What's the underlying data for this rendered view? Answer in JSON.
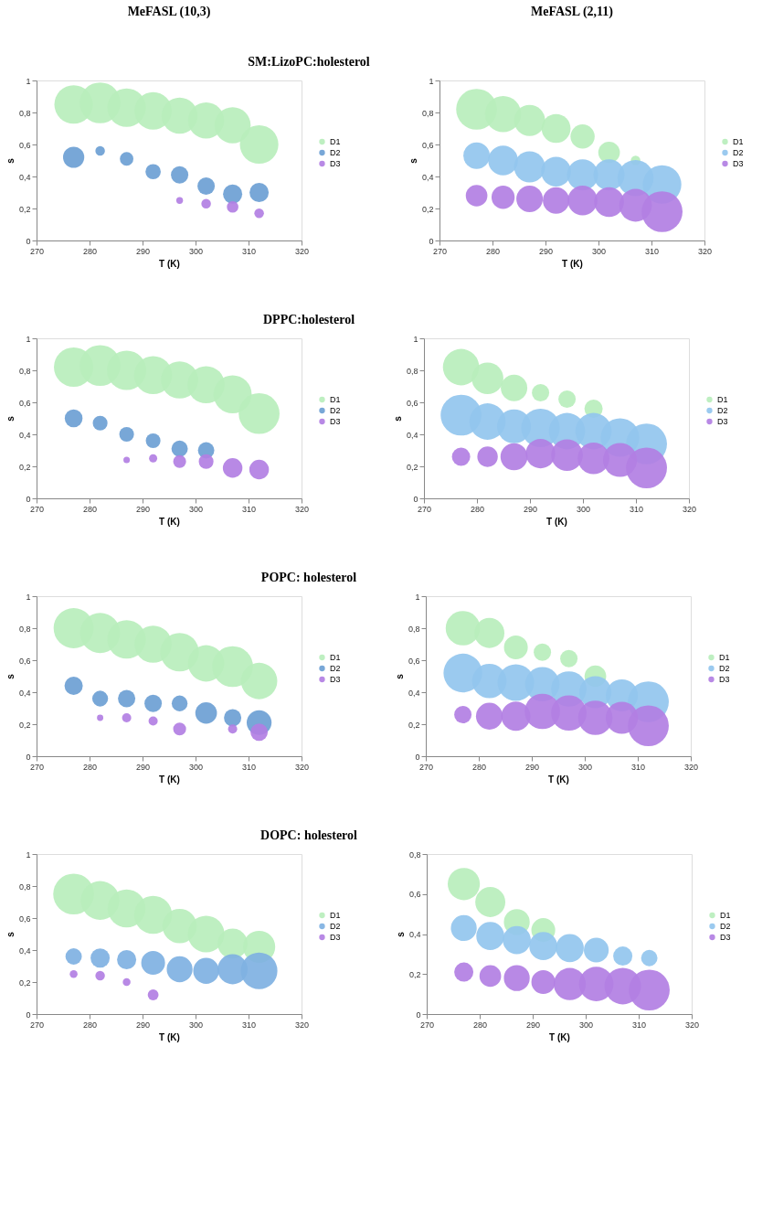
{
  "chart_data": [
    {
      "type": "bubble",
      "title": "MeFASL (10,3)",
      "subtitle": "SM:LizoPC:holesterol",
      "xlabel": "T (K)",
      "ylabel": "s",
      "x": [
        277,
        282,
        287,
        292,
        297,
        302,
        307,
        312
      ],
      "xlim": [
        270,
        320
      ],
      "xticks": [
        270,
        280,
        290,
        300,
        310,
        320
      ],
      "ylim": [
        0,
        1
      ],
      "yticks": [
        0,
        {
          "value": 0.2,
          "label": "0,2"
        },
        {
          "value": 0.4,
          "label": "0,4"
        },
        {
          "value": 0.6,
          "label": "0,6"
        },
        {
          "value": 0.8,
          "label": "0,8"
        },
        1
      ],
      "legend": "right",
      "series": [
        {
          "name": "D1",
          "color": "#b8eebc",
          "values": [
            0.85,
            0.86,
            0.83,
            0.81,
            0.78,
            0.75,
            0.72,
            0.6
          ],
          "sizes": [
            0.89,
            1,
            0.89,
            0.84,
            0.78,
            0.78,
            0.78,
            0.89
          ]
        },
        {
          "name": "D2",
          "color": "#6c9fd4",
          "values": [
            0.52,
            0.56,
            0.51,
            0.43,
            0.41,
            0.34,
            0.29,
            0.3
          ],
          "sizes": [
            0.27,
            0.055,
            0.11,
            0.14,
            0.18,
            0.18,
            0.22,
            0.22
          ]
        },
        {
          "name": "D3",
          "color": "#b27fe3",
          "values": [
            null,
            null,
            null,
            null,
            0.25,
            0.23,
            0.21,
            0.17
          ],
          "sizes": [
            null,
            null,
            null,
            null,
            0.027,
            0.055,
            0.08,
            0.055
          ]
        }
      ]
    },
    {
      "type": "bubble",
      "xlabel": "T (K)",
      "ylabel": "s",
      "x": [
        277,
        282,
        287,
        292,
        297,
        302,
        307,
        312
      ],
      "xlim": [
        270,
        320
      ],
      "xticks": [
        270,
        280,
        290,
        300,
        310,
        320
      ],
      "ylim": [
        0,
        1
      ],
      "yticks": [
        0,
        {
          "value": 0.2,
          "label": "0,2"
        },
        {
          "value": 0.4,
          "label": "0,4"
        },
        {
          "value": 0.6,
          "label": "0,6"
        },
        {
          "value": 0.8,
          "label": "0,8"
        },
        1
      ],
      "legend": "right",
      "title": "MeFASL (2,11)",
      "series": [
        {
          "name": "D1",
          "color": "#b8eebc",
          "values": [
            0.82,
            0.79,
            0.75,
            0.7,
            0.65,
            0.55,
            0.5,
            null
          ],
          "sizes": [
            1,
            0.78,
            0.58,
            0.5,
            0.35,
            0.28,
            0.055,
            null
          ]
        },
        {
          "name": "D2",
          "color": "#93c6ee",
          "values": [
            0.53,
            0.5,
            0.46,
            0.43,
            0.41,
            0.41,
            0.39,
            0.35
          ],
          "sizes": [
            0.42,
            0.53,
            0.58,
            0.53,
            0.58,
            0.58,
            0.78,
            0.89
          ]
        },
        {
          "name": "D3",
          "color": "#b27fe3",
          "values": [
            0.28,
            0.27,
            0.26,
            0.25,
            0.25,
            0.24,
            0.22,
            0.18
          ],
          "sizes": [
            0.28,
            0.32,
            0.42,
            0.42,
            0.53,
            0.53,
            0.64,
            1
          ]
        }
      ]
    },
    {
      "type": "bubble",
      "subtitle": "DPPC:holesterol",
      "xlabel": "T (K)",
      "ylabel": "s",
      "x": [
        277,
        282,
        287,
        292,
        297,
        302,
        307,
        312
      ],
      "xlim": [
        270,
        320
      ],
      "xticks": [
        270,
        280,
        290,
        300,
        310,
        320
      ],
      "ylim": [
        0,
        1
      ],
      "yticks": [
        0,
        {
          "value": 0.2,
          "label": "0,2"
        },
        {
          "value": 0.4,
          "label": "0,4"
        },
        {
          "value": 0.6,
          "label": "0,6"
        },
        {
          "value": 0.8,
          "label": "0,8"
        },
        1
      ],
      "legend": "right",
      "series": [
        {
          "name": "D1",
          "color": "#b8eebc",
          "values": [
            0.82,
            0.83,
            0.8,
            0.77,
            0.74,
            0.71,
            0.65,
            0.53
          ],
          "sizes": [
            0.93,
            1,
            0.93,
            0.87,
            0.83,
            0.83,
            0.87,
            1
          ]
        },
        {
          "name": "D2",
          "color": "#6c9fd4",
          "values": [
            0.5,
            0.47,
            0.4,
            0.36,
            0.31,
            0.3,
            null,
            null
          ],
          "sizes": [
            0.19,
            0.13,
            0.13,
            0.13,
            0.16,
            0.16,
            null,
            null
          ]
        },
        {
          "name": "D3",
          "color": "#b27fe3",
          "values": [
            null,
            null,
            0.24,
            0.25,
            0.23,
            0.23,
            0.19,
            0.18
          ],
          "sizes": [
            null,
            null,
            0.025,
            0.04,
            0.1,
            0.13,
            0.23,
            0.23
          ]
        }
      ]
    },
    {
      "type": "bubble",
      "xlabel": "T (K)",
      "ylabel": "s",
      "x": [
        277,
        282,
        287,
        292,
        297,
        302,
        307,
        312
      ],
      "xlim": [
        270,
        320
      ],
      "xticks": [
        270,
        280,
        290,
        300,
        310,
        320
      ],
      "ylim": [
        0,
        1
      ],
      "yticks": [
        0,
        {
          "value": 0.2,
          "label": "0,2"
        },
        {
          "value": 0.4,
          "label": "0,4"
        },
        {
          "value": 0.6,
          "label": "0,6"
        },
        {
          "value": 0.8,
          "label": "0,8"
        },
        1
      ],
      "legend": "right",
      "series": [
        {
          "name": "D1",
          "color": "#b8eebc",
          "values": [
            0.82,
            0.75,
            0.69,
            0.66,
            0.62,
            0.56,
            null,
            null
          ],
          "sizes": [
            0.79,
            0.6,
            0.42,
            0.18,
            0.18,
            0.2,
            null,
            null
          ]
        },
        {
          "name": "D2",
          "color": "#93c6ee",
          "values": [
            0.52,
            0.48,
            0.45,
            0.44,
            0.42,
            0.42,
            0.38,
            0.34
          ],
          "sizes": [
            1,
            0.79,
            0.69,
            0.89,
            0.79,
            0.79,
            0.89,
            1
          ]
        },
        {
          "name": "D3",
          "color": "#b27fe3",
          "values": [
            0.26,
            0.26,
            0.26,
            0.28,
            0.27,
            0.25,
            0.24,
            0.19
          ],
          "sizes": [
            0.2,
            0.25,
            0.44,
            0.52,
            0.6,
            0.6,
            0.69,
            1
          ]
        }
      ]
    },
    {
      "type": "bubble",
      "subtitle": "POPC: holesterol",
      "xlabel": "T (K)",
      "ylabel": "s",
      "x": [
        277,
        282,
        287,
        292,
        297,
        302,
        307,
        312
      ],
      "xlim": [
        270,
        320
      ],
      "xticks": [
        270,
        280,
        290,
        300,
        310,
        320
      ],
      "ylim": [
        0,
        1
      ],
      "yticks": [
        0,
        {
          "value": 0.2,
          "label": "0,2"
        },
        {
          "value": 0.4,
          "label": "0,4"
        },
        {
          "value": 0.6,
          "label": "0,6"
        },
        {
          "value": 0.8,
          "label": "0,8"
        },
        1
      ],
      "legend": "right",
      "series": [
        {
          "name": "D1",
          "color": "#b8eebc",
          "values": [
            0.8,
            0.77,
            0.73,
            0.7,
            0.65,
            0.58,
            0.56,
            0.47
          ],
          "sizes": [
            0.96,
            0.96,
            0.89,
            0.83,
            0.89,
            0.79,
            1,
            0.79
          ]
        },
        {
          "name": "D2",
          "color": "#6c9fd4",
          "values": [
            0.44,
            0.36,
            0.36,
            0.33,
            0.33,
            0.27,
            0.24,
            0.21
          ],
          "sizes": [
            0.2,
            0.15,
            0.18,
            0.18,
            0.15,
            0.28,
            0.18,
            0.37
          ]
        },
        {
          "name": "D3",
          "color": "#b27fe3",
          "values": [
            null,
            0.24,
            0.24,
            0.22,
            0.17,
            null,
            0.17,
            0.15
          ],
          "sizes": [
            null,
            0.024,
            0.05,
            0.05,
            0.1,
            null,
            0.05,
            0.18
          ]
        }
      ]
    },
    {
      "type": "bubble",
      "xlabel": "T (K)",
      "ylabel": "s",
      "x": [
        277,
        282,
        287,
        292,
        297,
        302,
        307,
        312
      ],
      "xlim": [
        270,
        320
      ],
      "xticks": [
        270,
        280,
        290,
        300,
        310,
        320
      ],
      "ylim": [
        0,
        1
      ],
      "yticks": [
        0,
        {
          "value": 0.2,
          "label": "0,2"
        },
        {
          "value": 0.4,
          "label": "0,4"
        },
        {
          "value": 0.6,
          "label": "0,6"
        },
        {
          "value": 0.8,
          "label": "0,8"
        },
        1
      ],
      "legend": "right",
      "series": [
        {
          "name": "D1",
          "color": "#b8eebc",
          "values": [
            0.8,
            0.77,
            0.68,
            0.65,
            0.61,
            0.5,
            null,
            null
          ],
          "sizes": [
            0.71,
            0.54,
            0.34,
            0.18,
            0.18,
            0.28,
            null,
            null
          ]
        },
        {
          "name": "D2",
          "color": "#93c6ee",
          "values": [
            0.52,
            0.47,
            0.46,
            0.45,
            0.42,
            0.4,
            0.38,
            0.34
          ],
          "sizes": [
            0.9,
            0.71,
            0.8,
            0.71,
            0.75,
            0.62,
            0.62,
            1
          ]
        },
        {
          "name": "D3",
          "color": "#b27fe3",
          "values": [
            0.26,
            0.25,
            0.25,
            0.28,
            0.27,
            0.24,
            0.24,
            0.19
          ],
          "sizes": [
            0.18,
            0.43,
            0.51,
            0.75,
            0.75,
            0.71,
            0.62,
            1
          ]
        }
      ]
    },
    {
      "type": "bubble",
      "subtitle": "DOPC: holesterol",
      "xlabel": "T (K)",
      "ylabel": "s",
      "x": [
        277,
        282,
        287,
        292,
        297,
        302,
        307,
        312
      ],
      "xlim": [
        270,
        320
      ],
      "xticks": [
        270,
        280,
        290,
        300,
        310,
        320
      ],
      "ylim": [
        0,
        1
      ],
      "yticks": [
        0,
        {
          "value": 0.2,
          "label": "0,2"
        },
        {
          "value": 0.4,
          "label": "0,4"
        },
        {
          "value": 0.6,
          "label": "0,6"
        },
        {
          "value": 0.8,
          "label": "0,8"
        },
        1
      ],
      "legend": "right",
      "series": [
        {
          "name": "D1",
          "color": "#b8eebc",
          "values": [
            0.75,
            0.71,
            0.66,
            0.62,
            0.55,
            0.5,
            0.44,
            0.42
          ],
          "sizes": [
            1,
            0.9,
            0.86,
            0.86,
            0.71,
            0.8,
            0.54,
            0.62
          ]
        },
        {
          "name": "D2",
          "color": "#7fb1e2",
          "values": [
            0.36,
            0.35,
            0.34,
            0.32,
            0.28,
            0.27,
            0.28,
            0.27
          ],
          "sizes": [
            0.16,
            0.22,
            0.22,
            0.34,
            0.4,
            0.4,
            0.54,
            0.8
          ]
        },
        {
          "name": "D3",
          "color": "#b27fe3",
          "values": [
            0.25,
            0.24,
            0.2,
            0.12,
            null,
            null,
            null,
            null
          ],
          "sizes": [
            0.036,
            0.054,
            0.036,
            0.07,
            null,
            null,
            null,
            null
          ]
        }
      ]
    },
    {
      "type": "bubble",
      "xlabel": "T (K)",
      "ylabel": "s",
      "x": [
        277,
        282,
        287,
        292,
        297,
        302,
        307,
        312
      ],
      "xlim": [
        270,
        320
      ],
      "xticks": [
        270,
        280,
        290,
        300,
        310,
        320
      ],
      "ylim": [
        0,
        0.8
      ],
      "yticks": [
        0,
        {
          "value": 0.2,
          "label": "0,2"
        },
        {
          "value": 0.4,
          "label": "0,4"
        },
        {
          "value": 0.6,
          "label": "0,6"
        },
        {
          "value": 0.8,
          "label": "0,8"
        }
      ],
      "legend": "right",
      "series": [
        {
          "name": "D1",
          "color": "#b8eebc",
          "values": [
            0.65,
            0.56,
            0.46,
            0.42,
            null,
            null,
            null,
            null
          ],
          "sizes": [
            0.62,
            0.54,
            0.4,
            0.34,
            null,
            null,
            null,
            null
          ]
        },
        {
          "name": "D2",
          "color": "#93c6ee",
          "values": [
            0.43,
            0.39,
            0.37,
            0.34,
            0.33,
            0.32,
            0.29,
            0.28
          ],
          "sizes": [
            0.4,
            0.47,
            0.47,
            0.47,
            0.47,
            0.37,
            0.22,
            0.16
          ]
        },
        {
          "name": "D3",
          "color": "#b27fe3",
          "values": [
            0.21,
            0.19,
            0.18,
            0.16,
            0.15,
            0.15,
            0.14,
            0.12
          ],
          "sizes": [
            0.22,
            0.28,
            0.4,
            0.34,
            0.62,
            0.71,
            0.8,
            1
          ]
        }
      ]
    }
  ]
}
